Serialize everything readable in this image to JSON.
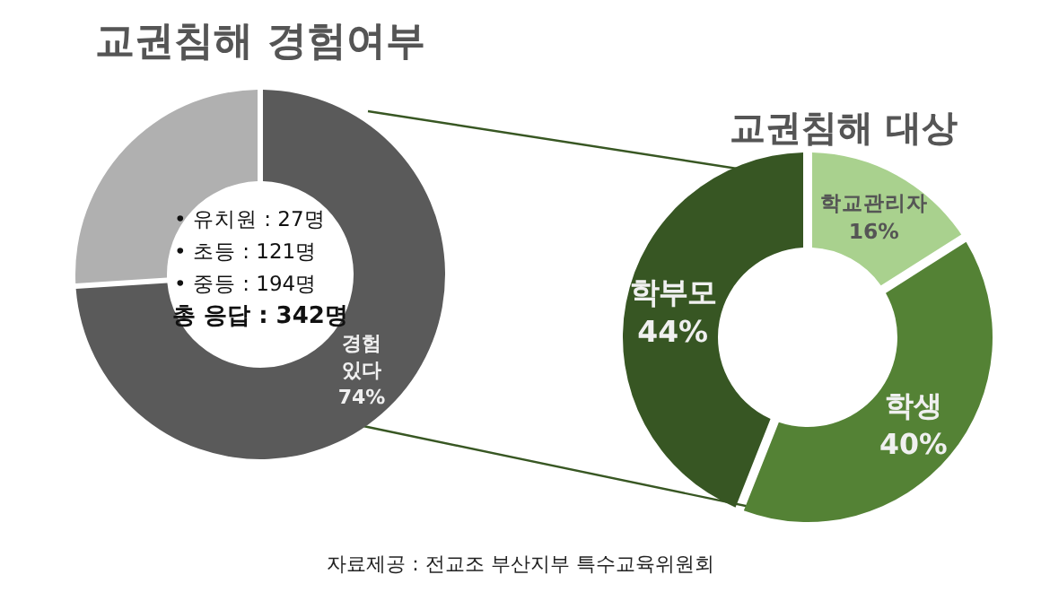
{
  "chart_data": [
    {
      "type": "donut",
      "title": "교권침해 경험여부",
      "categories": [
        "경험 있다",
        null
      ],
      "values": [
        74,
        26
      ],
      "colors": [
        "#5a5a5a",
        "#b0b0b0"
      ],
      "value_labels": [
        "74%",
        null
      ],
      "annotations": [
        "• 유치원 : 27명",
        "• 초등 : 121명",
        "• 중등 : 194명",
        "총 응답 : 342명"
      ]
    },
    {
      "type": "donut",
      "title": "교권침해 대상",
      "categories": [
        "학교관리자",
        "학생",
        "학부모"
      ],
      "values": [
        16,
        40,
        44
      ],
      "colors": [
        "#a9d18e",
        "#548235",
        "#375623"
      ],
      "value_labels": [
        "16%",
        "40%",
        "44%"
      ],
      "annotations": [
        "자료제공 : 전교조 부산지부 특수교육위원회"
      ]
    }
  ]
}
